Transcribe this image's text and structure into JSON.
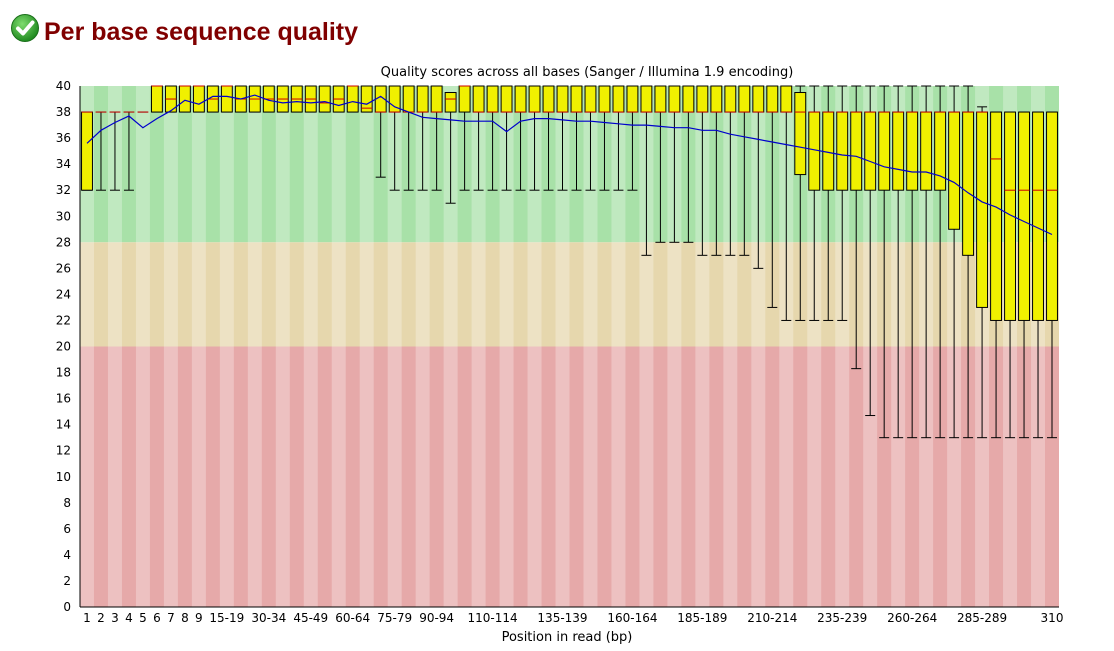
{
  "header": {
    "title": "Per base sequence quality",
    "status_icon": "pass-check-icon",
    "status_color": "#2e9e2e"
  },
  "colors": {
    "title": "#800000",
    "zone_good": "#a8e1a8",
    "zone_warn": "#e6d7ad",
    "zone_fail": "#e6a9a9",
    "box": "#f0f000",
    "median": "#cc0000",
    "mean": "#0000cc"
  },
  "chart_data": {
    "type": "boxplot",
    "title": "Quality scores across all bases (Sanger / Illumina 1.9 encoding)",
    "xlabel": "Position in read (bp)",
    "ylabel": "",
    "ylim": [
      0,
      40
    ],
    "yticks": [
      0,
      2,
      4,
      6,
      8,
      10,
      12,
      14,
      16,
      18,
      20,
      22,
      24,
      26,
      28,
      30,
      32,
      34,
      36,
      38,
      40
    ],
    "zones": [
      {
        "name": "good",
        "from": 28,
        "to": 40
      },
      {
        "name": "warning",
        "from": 20,
        "to": 28
      },
      {
        "name": "fail",
        "from": 0,
        "to": 20
      }
    ],
    "categories": [
      "1",
      "2",
      "3",
      "4",
      "5",
      "6",
      "7",
      "8",
      "9",
      "10-14",
      "15-19",
      "20-24",
      "25-29",
      "30-34",
      "35-39",
      "40-44",
      "45-49",
      "50-54",
      "55-59",
      "60-64",
      "65-69",
      "70-74",
      "75-79",
      "80-84",
      "85-89",
      "90-94",
      "95-99",
      "100-104",
      "105-109",
      "110-114",
      "115-119",
      "120-124",
      "125-129",
      "130-134",
      "135-139",
      "140-144",
      "145-149",
      "150-154",
      "155-159",
      "160-164",
      "165-169",
      "170-174",
      "175-179",
      "180-184",
      "185-189",
      "190-194",
      "195-199",
      "200-204",
      "205-209",
      "210-214",
      "215-219",
      "220-224",
      "225-229",
      "230-234",
      "235-239",
      "240-244",
      "245-249",
      "250-254",
      "255-259",
      "260-264",
      "265-269",
      "270-274",
      "275-279",
      "280-284",
      "285-289",
      "290-294",
      "295-299",
      "300-304",
      "305-309",
      "310"
    ],
    "xtick_labels": [
      "1",
      "2",
      "3",
      "4",
      "5",
      "6",
      "7",
      "8",
      "9",
      "15-19",
      "30-34",
      "45-49",
      "60-64",
      "75-79",
      "90-94",
      "110-114",
      "135-139",
      "160-164",
      "185-189",
      "210-214",
      "235-239",
      "260-264",
      "285-289",
      "310"
    ],
    "series": [
      {
        "name": "10th percentile",
        "values": [
          32,
          32,
          32,
          32,
          38,
          38,
          38,
          38,
          38,
          38,
          38,
          38,
          38,
          38,
          38,
          38,
          38,
          38,
          38,
          38,
          38,
          33,
          32,
          32,
          32,
          32,
          31,
          32,
          32,
          32,
          32,
          32,
          32,
          32,
          32,
          32,
          32,
          32,
          32,
          32,
          27,
          28,
          28,
          28,
          27,
          27,
          27,
          27,
          26,
          23,
          22,
          22,
          22,
          22,
          22,
          18.3,
          14.7,
          13,
          13,
          13,
          13,
          13,
          13,
          13,
          13,
          13,
          13,
          13,
          13,
          13
        ]
      },
      {
        "name": "lower quartile",
        "values": [
          32,
          38,
          38,
          38,
          38,
          38,
          38,
          38,
          38,
          38,
          38,
          38,
          38,
          38,
          38,
          38,
          38,
          38,
          38,
          38,
          38,
          38,
          38,
          38,
          38,
          38,
          38,
          38,
          38,
          38,
          38,
          38,
          38,
          38,
          38,
          38,
          38,
          38,
          38,
          38,
          38,
          38,
          38,
          38,
          38,
          38,
          38,
          38,
          38,
          38,
          38,
          33.2,
          32,
          32,
          32,
          32,
          32,
          32,
          32,
          32,
          32,
          32,
          29,
          27,
          23,
          22,
          22,
          22,
          22,
          22
        ]
      },
      {
        "name": "median",
        "values": [
          38,
          38,
          38,
          38,
          38,
          40,
          39,
          40,
          40,
          39,
          40,
          39,
          39,
          39,
          39,
          39,
          39,
          38.7,
          39,
          40,
          38.3,
          38,
          38,
          38,
          38,
          38,
          39,
          40,
          38,
          38,
          38,
          38,
          38,
          38,
          38,
          38,
          38,
          38,
          38,
          38,
          38,
          38,
          38,
          38,
          38,
          38,
          38,
          38,
          38,
          38,
          38,
          38,
          38,
          38,
          38,
          38,
          38,
          38,
          38,
          38,
          38,
          38,
          38,
          38,
          38,
          34.4,
          32,
          32,
          32,
          32
        ]
      },
      {
        "name": "upper quartile",
        "values": [
          38,
          38,
          38,
          38,
          38,
          40,
          40,
          40,
          40,
          40,
          40,
          40,
          40,
          40,
          40,
          40,
          40,
          40,
          40,
          40,
          40,
          40,
          40,
          40,
          40,
          40,
          39.5,
          40,
          40,
          40,
          40,
          40,
          40,
          40,
          40,
          40,
          40,
          40,
          40,
          40,
          40,
          40,
          40,
          40,
          40,
          40,
          40,
          40,
          40,
          40,
          40,
          39.5,
          38,
          38,
          38,
          38,
          38,
          38,
          38,
          38,
          38,
          38,
          38,
          38,
          38,
          38,
          38,
          38,
          38,
          38
        ]
      },
      {
        "name": "90th percentile",
        "values": [
          38,
          38,
          38,
          38,
          38,
          40,
          40,
          40,
          40,
          40,
          40,
          40,
          40,
          40,
          40,
          40,
          40,
          40,
          40,
          40,
          40,
          40,
          40,
          40,
          40,
          40,
          39.5,
          40,
          40,
          40,
          40,
          40,
          40,
          40,
          40,
          40,
          40,
          40,
          40,
          40,
          40,
          40,
          40,
          40,
          40,
          40,
          40,
          40,
          40,
          40,
          40,
          40,
          40,
          40,
          40,
          40,
          40,
          40,
          40,
          40,
          40,
          40,
          40,
          40,
          38.4,
          38,
          38,
          38,
          38,
          38
        ]
      },
      {
        "name": "mean",
        "values": [
          35.6,
          36.6,
          37.2,
          37.7,
          36.8,
          37.5,
          38.1,
          38.9,
          38.6,
          39.2,
          39.2,
          39,
          39.3,
          38.9,
          38.7,
          38.8,
          38.7,
          38.8,
          38.5,
          38.8,
          38.6,
          39.2,
          38.4,
          38,
          37.6,
          37.5,
          37.4,
          37.3,
          37.3,
          37.3,
          36.5,
          37.3,
          37.5,
          37.5,
          37.4,
          37.3,
          37.3,
          37.2,
          37.1,
          37,
          37,
          36.9,
          36.8,
          36.8,
          36.6,
          36.6,
          36.3,
          36.1,
          35.9,
          35.7,
          35.5,
          35.3,
          35.1,
          34.9,
          34.7,
          34.6,
          34.2,
          33.8,
          33.6,
          33.4,
          33.4,
          33.1,
          32.6,
          31.8,
          31.1,
          30.7,
          30.1,
          29.6,
          29.1,
          28.6
        ]
      }
    ],
    "grid": false,
    "legend": "none"
  }
}
